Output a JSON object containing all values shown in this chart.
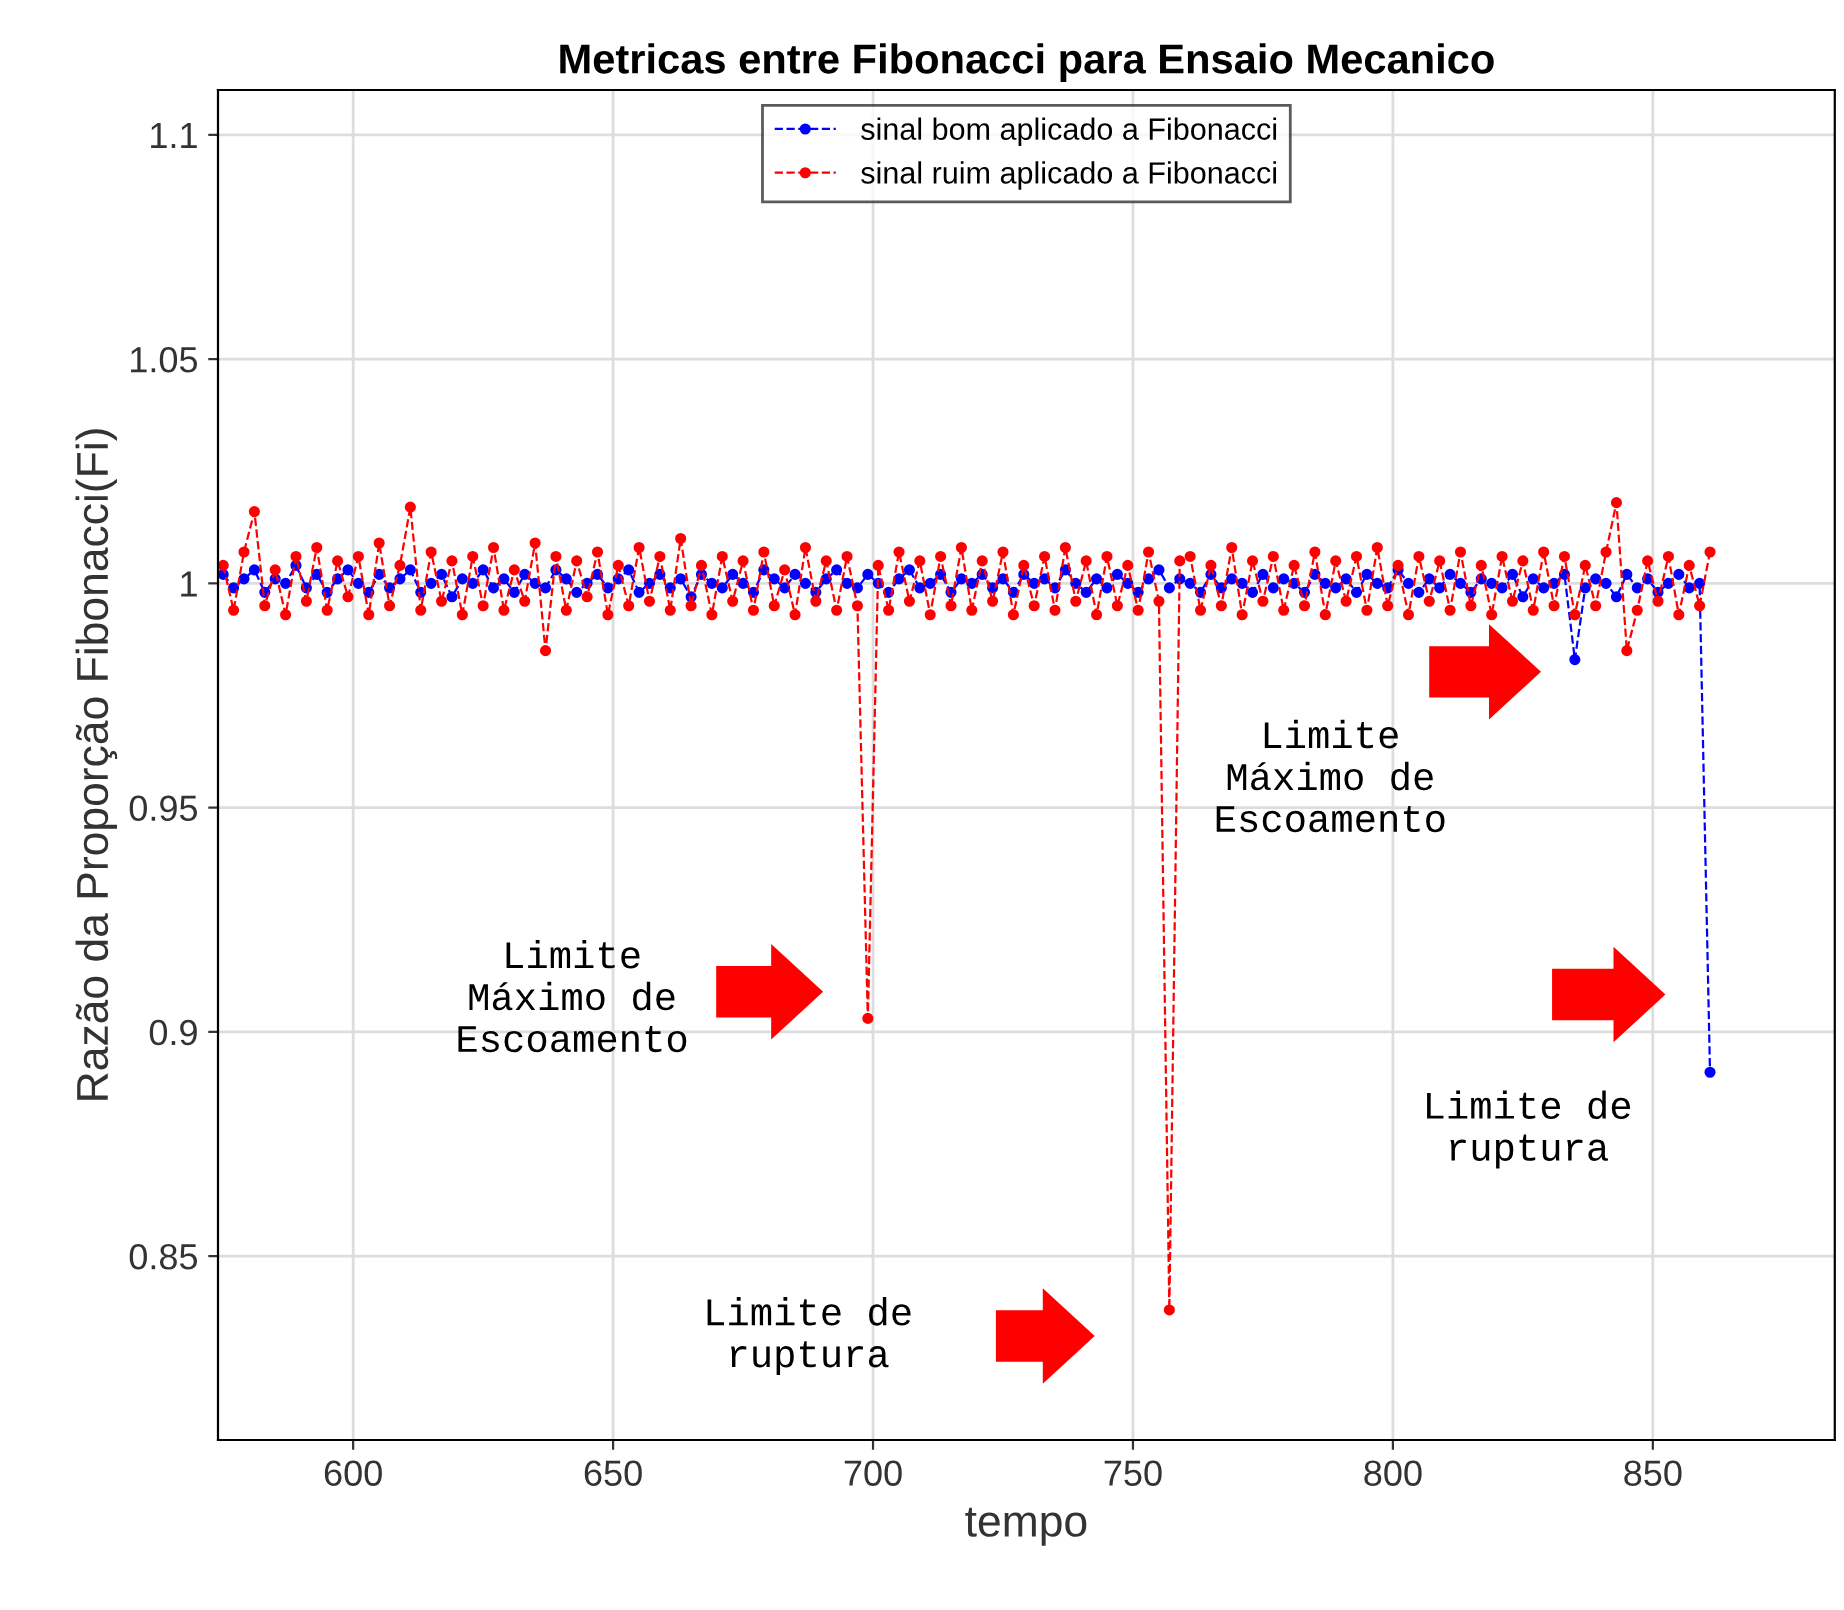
{
  "chart_data": {
    "type": "line",
    "title": "Metricas entre Fibonacci para Ensaio Mecanico",
    "xlabel": "tempo",
    "ylabel": "Razão da Proporção Fibonacci(Fi)",
    "x": [
      575,
      577,
      579,
      581,
      583,
      585,
      587,
      589,
      591,
      593,
      595,
      597,
      599,
      601,
      603,
      605,
      607,
      609,
      611,
      613,
      615,
      617,
      619,
      621,
      623,
      625,
      627,
      629,
      631,
      633,
      635,
      637,
      639,
      641,
      643,
      645,
      647,
      649,
      651,
      653,
      655,
      657,
      659,
      661,
      663,
      665,
      667,
      669,
      671,
      673,
      675,
      677,
      679,
      681,
      683,
      685,
      687,
      689,
      691,
      693,
      695,
      697,
      699,
      701,
      703,
      705,
      707,
      709,
      711,
      713,
      715,
      717,
      719,
      721,
      723,
      725,
      727,
      729,
      731,
      733,
      735,
      737,
      739,
      741,
      743,
      745,
      747,
      749,
      751,
      753,
      755,
      757,
      759,
      761,
      763,
      765,
      767,
      769,
      771,
      773,
      775,
      777,
      779,
      781,
      783,
      785,
      787,
      789,
      791,
      793,
      795,
      797,
      799,
      801,
      803,
      805,
      807,
      809,
      811,
      813,
      815,
      817,
      819,
      821,
      823,
      825,
      827,
      829,
      831,
      833,
      835,
      837,
      839,
      841,
      843,
      845,
      847,
      849,
      851,
      853,
      855,
      857,
      859,
      861
    ],
    "series": [
      {
        "name": "sinal bom aplicado a Fibonacci",
        "color": "#0000ff",
        "values": [
          1.002,
          0.999,
          1.001,
          1.003,
          0.998,
          1.001,
          1.0,
          1.004,
          0.999,
          1.002,
          0.998,
          1.001,
          1.003,
          1.0,
          0.998,
          1.002,
          0.999,
          1.001,
          1.003,
          0.998,
          1.0,
          1.002,
          0.997,
          1.001,
          1.0,
          1.003,
          0.999,
          1.001,
          0.998,
          1.002,
          1.0,
          0.999,
          1.003,
          1.001,
          0.998,
          1.0,
          1.002,
          0.999,
          1.001,
          1.003,
          0.998,
          1.0,
          1.002,
          0.999,
          1.001,
          0.997,
          1.002,
          1.0,
          0.999,
          1.002,
          1.0,
          0.998,
          1.003,
          1.001,
          0.999,
          1.002,
          1.0,
          0.998,
          1.001,
          1.003,
          1.0,
          0.999,
          1.002,
          1.0,
          0.998,
          1.001,
          1.003,
          0.999,
          1.0,
          1.002,
          0.998,
          1.001,
          1.0,
          1.002,
          0.999,
          1.001,
          0.998,
          1.002,
          1.0,
          1.001,
          0.999,
          1.003,
          1.0,
          0.998,
          1.001,
          0.999,
          1.002,
          1.0,
          0.998,
          1.001,
          1.003,
          0.999,
          1.001,
          1.0,
          0.998,
          1.002,
          0.999,
          1.001,
          1.0,
          0.998,
          1.002,
          0.999,
          1.001,
          1.0,
          0.998,
          1.002,
          1.0,
          0.999,
          1.001,
          0.998,
          1.002,
          1.0,
          0.999,
          1.003,
          1.0,
          0.998,
          1.001,
          0.999,
          1.002,
          1.0,
          0.998,
          1.001,
          1.0,
          0.999,
          1.002,
          0.997,
          1.001,
          0.999,
          1.0,
          1.002,
          0.983,
          0.999,
          1.001,
          1.0,
          0.997,
          1.002,
          0.999,
          1.001,
          0.998,
          1.0,
          1.002,
          0.999,
          1.0,
          0.891
        ]
      },
      {
        "name": "sinal ruim aplicado a Fibonacci",
        "color": "#ff0000",
        "values": [
          1.004,
          0.994,
          1.007,
          1.016,
          0.995,
          1.003,
          0.993,
          1.006,
          0.996,
          1.008,
          0.994,
          1.005,
          0.997,
          1.006,
          0.993,
          1.009,
          0.995,
          1.004,
          1.017,
          0.994,
          1.007,
          0.996,
          1.005,
          0.993,
          1.006,
          0.995,
          1.008,
          0.994,
          1.003,
          0.996,
          1.009,
          0.985,
          1.006,
          0.994,
          1.005,
          0.997,
          1.007,
          0.993,
          1.004,
          0.995,
          1.008,
          0.996,
          1.006,
          0.994,
          1.01,
          0.995,
          1.004,
          0.993,
          1.006,
          0.996,
          1.005,
          0.994,
          1.007,
          0.995,
          1.003,
          0.993,
          1.008,
          0.996,
          1.005,
          0.994,
          1.006,
          0.995,
          0.903,
          1.004,
          0.994,
          1.007,
          0.996,
          1.005,
          0.993,
          1.006,
          0.995,
          1.008,
          0.994,
          1.005,
          0.996,
          1.007,
          0.993,
          1.004,
          0.995,
          1.006,
          0.994,
          1.008,
          0.996,
          1.005,
          0.993,
          1.006,
          0.995,
          1.004,
          0.994,
          1.007,
          0.996,
          0.838,
          1.005,
          1.006,
          0.994,
          1.004,
          0.995,
          1.008,
          0.993,
          1.005,
          0.996,
          1.006,
          0.994,
          1.004,
          0.995,
          1.007,
          0.993,
          1.005,
          0.996,
          1.006,
          0.994,
          1.008,
          0.995,
          1.004,
          0.993,
          1.006,
          0.996,
          1.005,
          0.994,
          1.007,
          0.995,
          1.004,
          0.993,
          1.006,
          0.996,
          1.005,
          0.994,
          1.007,
          0.995,
          1.006,
          0.993,
          1.004,
          0.995,
          1.007,
          1.018,
          0.985,
          0.994,
          1.005,
          0.996,
          1.006,
          0.993,
          1.004,
          0.995,
          1.007
        ]
      }
    ],
    "xlim": [
      574,
      885
    ],
    "ylim": [
      0.809,
      1.11
    ],
    "xticks": [
      600,
      650,
      700,
      750,
      800,
      850
    ],
    "yticks": [
      0.85,
      0.9,
      0.95,
      1,
      1.05,
      1.1
    ],
    "grid": true,
    "legend": "top",
    "marker": "circle",
    "line_style": "dashed",
    "annotations": [
      "Limite\nMáximo de\nEscoamento",
      "Limite de\nruptura",
      "Limite\nMáximo de\nEscoamento",
      "Limite de\nruptura"
    ]
  }
}
